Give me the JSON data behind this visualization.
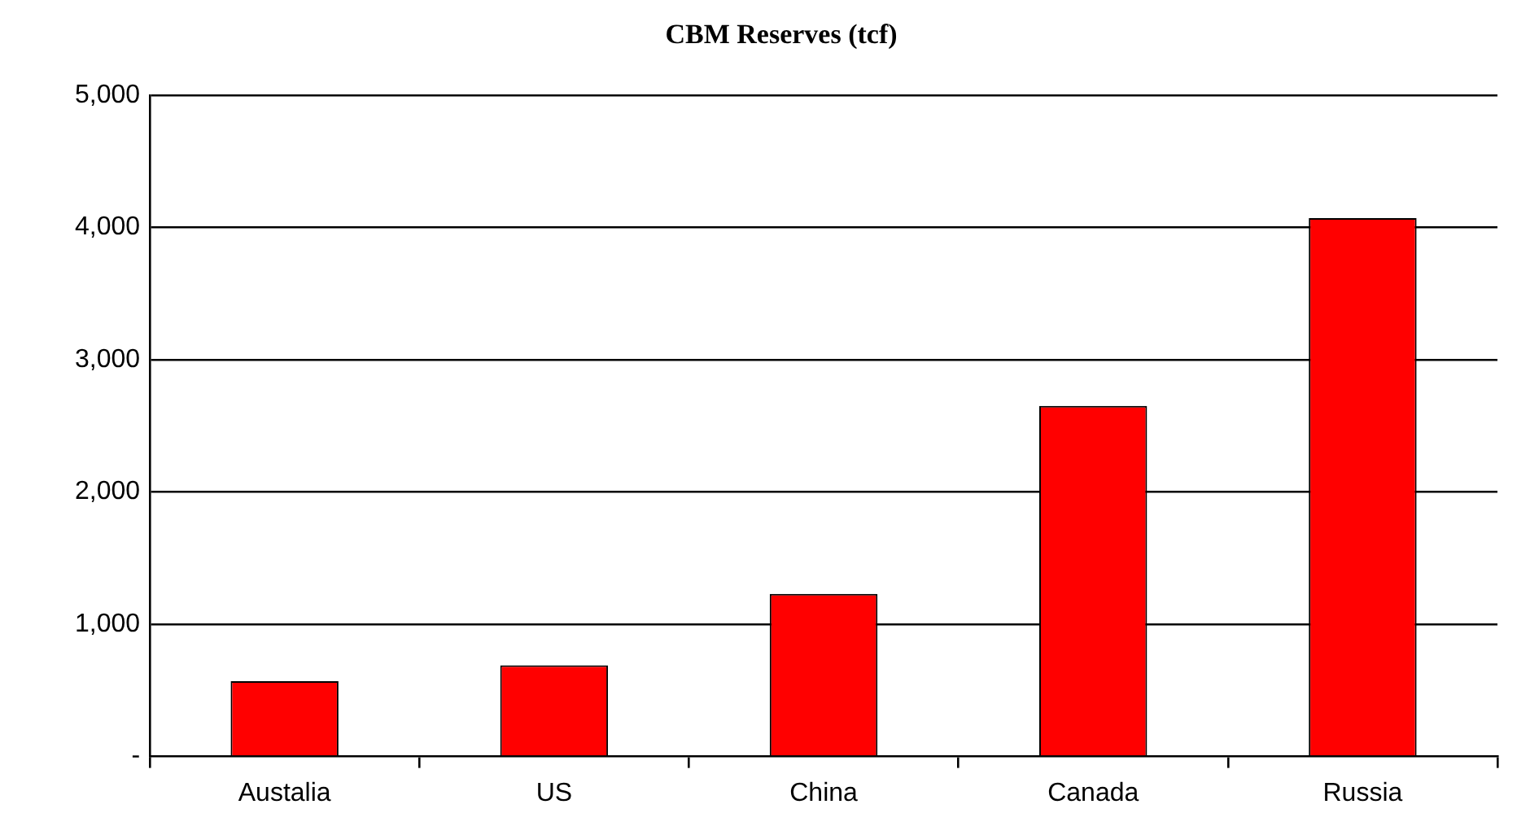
{
  "chart_data": {
    "type": "bar",
    "title": "CBM Reserves (tcf)",
    "categories": [
      "Austalia",
      "US",
      "China",
      "Canada",
      "Russia"
    ],
    "values": [
      570,
      690,
      1230,
      2650,
      4070
    ],
    "color": "#ff0000",
    "ylim": [
      0,
      5000
    ],
    "yticks": [
      {
        "value": 0,
        "label": "-"
      },
      {
        "value": 1000,
        "label": "1,000"
      },
      {
        "value": 2000,
        "label": "2,000"
      },
      {
        "value": 3000,
        "label": "3,000"
      },
      {
        "value": 4000,
        "label": "4,000"
      },
      {
        "value": 5000,
        "label": "5,000"
      }
    ],
    "grid": "y",
    "legend": false
  }
}
